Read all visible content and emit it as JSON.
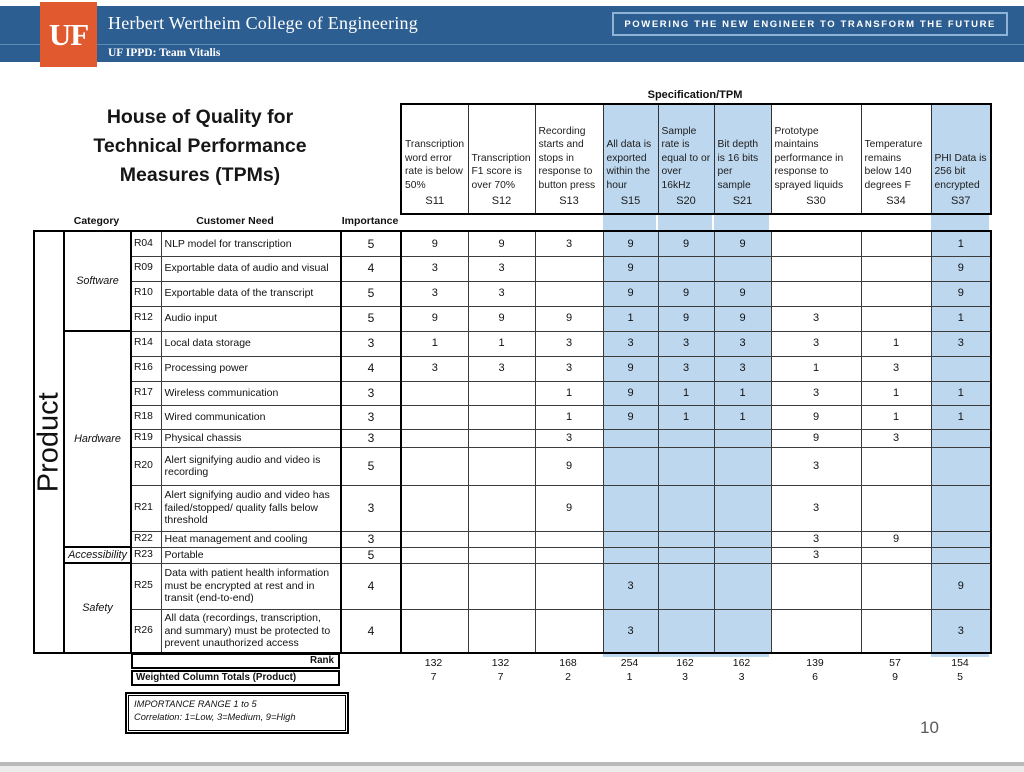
{
  "header": {
    "logo": "UF",
    "college": "Herbert Wertheim College of Engineering",
    "banner": "POWERING THE NEW ENGINEER TO TRANSFORM THE FUTURE",
    "team": "UF IPPD: Team Vitalis"
  },
  "title": "House of Quality for Technical Performance Measures (TPMs)",
  "spec_caption": "Specification/TPM",
  "axis": {
    "category": "Category",
    "customer_need": "Customer Need",
    "importance": "Importance",
    "product": "Product"
  },
  "columns": [
    {
      "id": "S11",
      "desc": "Transcription word error rate is below 50%",
      "highlight": false
    },
    {
      "id": "S12",
      "desc": "Transcription F1 score is over 70%",
      "highlight": false
    },
    {
      "id": "S13",
      "desc": "Recording starts and stops in response to button press",
      "highlight": false
    },
    {
      "id": "S15",
      "desc": "All data is exported within the hour",
      "highlight": true
    },
    {
      "id": "S20",
      "desc": "Sample rate is equal to or over 16kHz",
      "highlight": true
    },
    {
      "id": "S21",
      "desc": "Bit depth is 16 bits per sample",
      "highlight": true
    },
    {
      "id": "S30",
      "desc": "Prototype maintains performance in response to sprayed liquids",
      "highlight": false
    },
    {
      "id": "S34",
      "desc": "Temperature remains below 140 degrees F",
      "highlight": false
    },
    {
      "id": "S37",
      "desc": "PHI Data is 256 bit encrypted",
      "highlight": true
    }
  ],
  "row_groups": [
    {
      "category": "Software",
      "rows": [
        {
          "code": "R04",
          "need": "NLP model for transcription",
          "importance": "5",
          "values": [
            "9",
            "9",
            "3",
            "9",
            "9",
            "9",
            "",
            "",
            "1"
          ]
        },
        {
          "code": "R09",
          "need": "Exportable data of audio and visual",
          "importance": "4",
          "values": [
            "3",
            "3",
            "",
            "9",
            "",
            "",
            "",
            "",
            "9"
          ]
        },
        {
          "code": "R10",
          "need": "Exportable data of the transcript",
          "importance": "5",
          "values": [
            "3",
            "3",
            "",
            "9",
            "9",
            "9",
            "",
            "",
            "9"
          ]
        },
        {
          "code": "R12",
          "need": "Audio input",
          "importance": "5",
          "values": [
            "9",
            "9",
            "9",
            "1",
            "9",
            "9",
            "3",
            "",
            "1"
          ]
        }
      ]
    },
    {
      "category": "Hardware",
      "rows": [
        {
          "code": "R14",
          "need": "Local data storage",
          "importance": "3",
          "values": [
            "1",
            "1",
            "3",
            "3",
            "3",
            "3",
            "3",
            "1",
            "3"
          ]
        },
        {
          "code": "R16",
          "need": "Processing power",
          "importance": "4",
          "values": [
            "3",
            "3",
            "3",
            "9",
            "3",
            "3",
            "1",
            "3",
            ""
          ]
        },
        {
          "code": "R17",
          "need": "Wireless communication",
          "importance": "3",
          "values": [
            "",
            "",
            "1",
            "9",
            "1",
            "1",
            "3",
            "1",
            "1"
          ]
        },
        {
          "code": "R18",
          "need": "Wired communication",
          "importance": "3",
          "values": [
            "",
            "",
            "1",
            "9",
            "1",
            "1",
            "9",
            "1",
            "1"
          ]
        },
        {
          "code": "R19",
          "need": "Physical chassis",
          "importance": "3",
          "values": [
            "",
            "",
            "3",
            "",
            "",
            "",
            "9",
            "3",
            ""
          ]
        },
        {
          "code": "R20",
          "need": "Alert signifying audio and video is recording",
          "importance": "5",
          "values": [
            "",
            "",
            "9",
            "",
            "",
            "",
            "3",
            "",
            ""
          ]
        },
        {
          "code": "R21",
          "need": "Alert signifying audio and video has failed/stopped/ quality falls below threshold",
          "importance": "3",
          "values": [
            "",
            "",
            "9",
            "",
            "",
            "",
            "3",
            "",
            ""
          ]
        },
        {
          "code": "R22",
          "need": "Heat management and cooling",
          "importance": "3",
          "values": [
            "",
            "",
            "",
            "",
            "",
            "",
            "3",
            "9",
            ""
          ]
        }
      ]
    },
    {
      "category": "Accessibility",
      "rows": [
        {
          "code": "R23",
          "need": "Portable",
          "importance": "5",
          "values": [
            "",
            "",
            "",
            "",
            "",
            "",
            "3",
            "",
            ""
          ]
        }
      ]
    },
    {
      "category": "Safety",
      "rows": [
        {
          "code": "R25",
          "need": "Data with patient health information must be encrypted at rest and in transit (end-to-end)",
          "importance": "4",
          "values": [
            "",
            "",
            "",
            "3",
            "",
            "",
            "",
            "",
            "9"
          ]
        },
        {
          "code": "R26",
          "need": "All data (recordings, transcription, and summary) must be protected to prevent unauthorized access",
          "importance": "4",
          "values": [
            "",
            "",
            "",
            "3",
            "",
            "",
            "",
            "",
            "3"
          ]
        }
      ]
    }
  ],
  "footer_rows": [
    {
      "label": "Rank",
      "values": [
        "132",
        "132",
        "168",
        "254",
        "162",
        "162",
        "139",
        "57",
        "154"
      ]
    },
    {
      "label": "Weighted Column Totals (Product)",
      "values": [
        "7",
        "7",
        "2",
        "1",
        "3",
        "3",
        "6",
        "9",
        "5"
      ]
    }
  ],
  "note": {
    "line1": "IMPORTANCE RANGE 1 to 5",
    "line2": "Correlation: 1=Low, 3=Medium, 9=High"
  },
  "page_number": "10",
  "colors": {
    "header_blue": "#2C5E92",
    "accent_orange": "#E1592F",
    "highlight_blue": "#BDD7EE"
  }
}
